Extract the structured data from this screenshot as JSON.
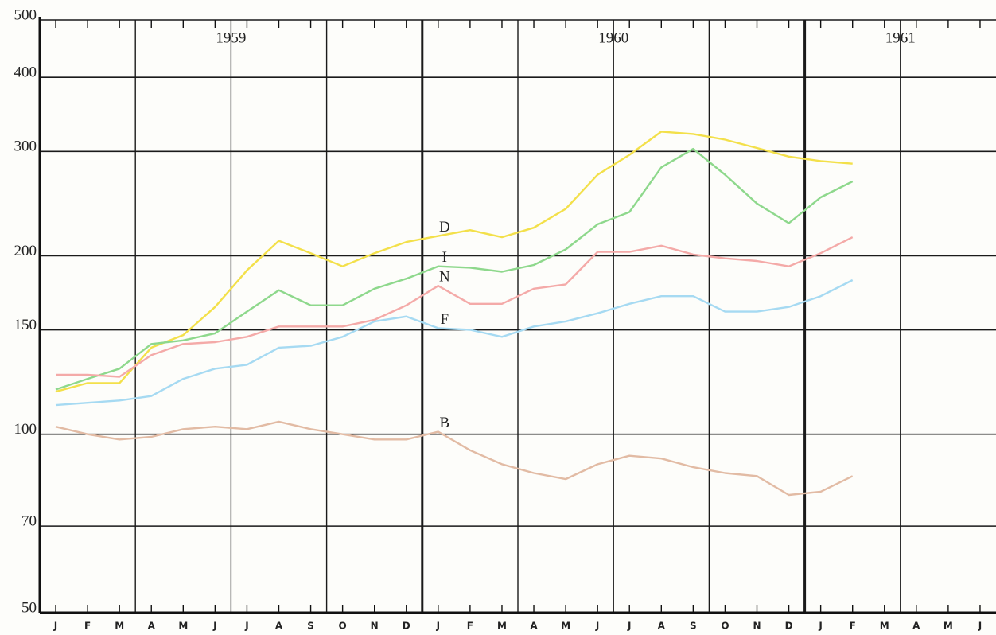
{
  "chart_data": {
    "type": "line",
    "log_y": true,
    "grid": true,
    "years": [
      "1959",
      "1960",
      "1961"
    ],
    "categories": [
      "J",
      "F",
      "M",
      "A",
      "M",
      "J",
      "J",
      "A",
      "S",
      "O",
      "N",
      "D",
      "J",
      "F",
      "M",
      "A",
      "M",
      "J",
      "J",
      "A",
      "S",
      "O",
      "N",
      "D",
      "J",
      "F",
      "M",
      "A",
      "M",
      "J"
    ],
    "ylim": [
      50,
      500
    ],
    "yticks": [
      50,
      70,
      100,
      150,
      200,
      300,
      400,
      500
    ],
    "series": [
      {
        "name": "D",
        "color": "#f3e04a",
        "values": [
          118,
          122,
          122,
          140,
          147,
          164,
          189,
          212,
          202,
          192,
          202,
          211,
          216,
          221,
          215,
          223,
          240,
          274,
          296,
          324,
          321,
          314,
          304,
          294,
          289,
          286,
          null,
          null,
          null,
          null
        ]
      },
      {
        "name": "I",
        "color": "#8ed88c",
        "values": [
          119,
          124,
          129,
          142,
          144,
          148,
          161,
          175,
          165,
          165,
          176,
          183,
          192,
          191,
          188,
          193,
          205,
          226,
          237,
          282,
          303,
          274,
          245,
          227,
          251,
          267,
          null,
          null,
          null,
          null
        ]
      },
      {
        "name": "N",
        "color": "#f4aaa8",
        "values": [
          126,
          126,
          125,
          136,
          142,
          143,
          146,
          152,
          152,
          152,
          156,
          165,
          178,
          166,
          166,
          176,
          179,
          203,
          203,
          208,
          201,
          198,
          196,
          192,
          202,
          215,
          null,
          null,
          null,
          null
        ]
      },
      {
        "name": "F",
        "color": "#a6daf2",
        "values": [
          112,
          113,
          114,
          116,
          124,
          129,
          131,
          140,
          141,
          146,
          155,
          158,
          151,
          150,
          146,
          152,
          155,
          160,
          166,
          171,
          171,
          161,
          161,
          164,
          171,
          182,
          null,
          null,
          null,
          null
        ]
      },
      {
        "name": "B",
        "color": "#e2bba4",
        "values": [
          103,
          100,
          98,
          99,
          102,
          103,
          102,
          105,
          102,
          100,
          98,
          98,
          101,
          94,
          89,
          86,
          84,
          89,
          92,
          91,
          88,
          86,
          85,
          79,
          80,
          85,
          null,
          null,
          null,
          null
        ]
      }
    ]
  }
}
